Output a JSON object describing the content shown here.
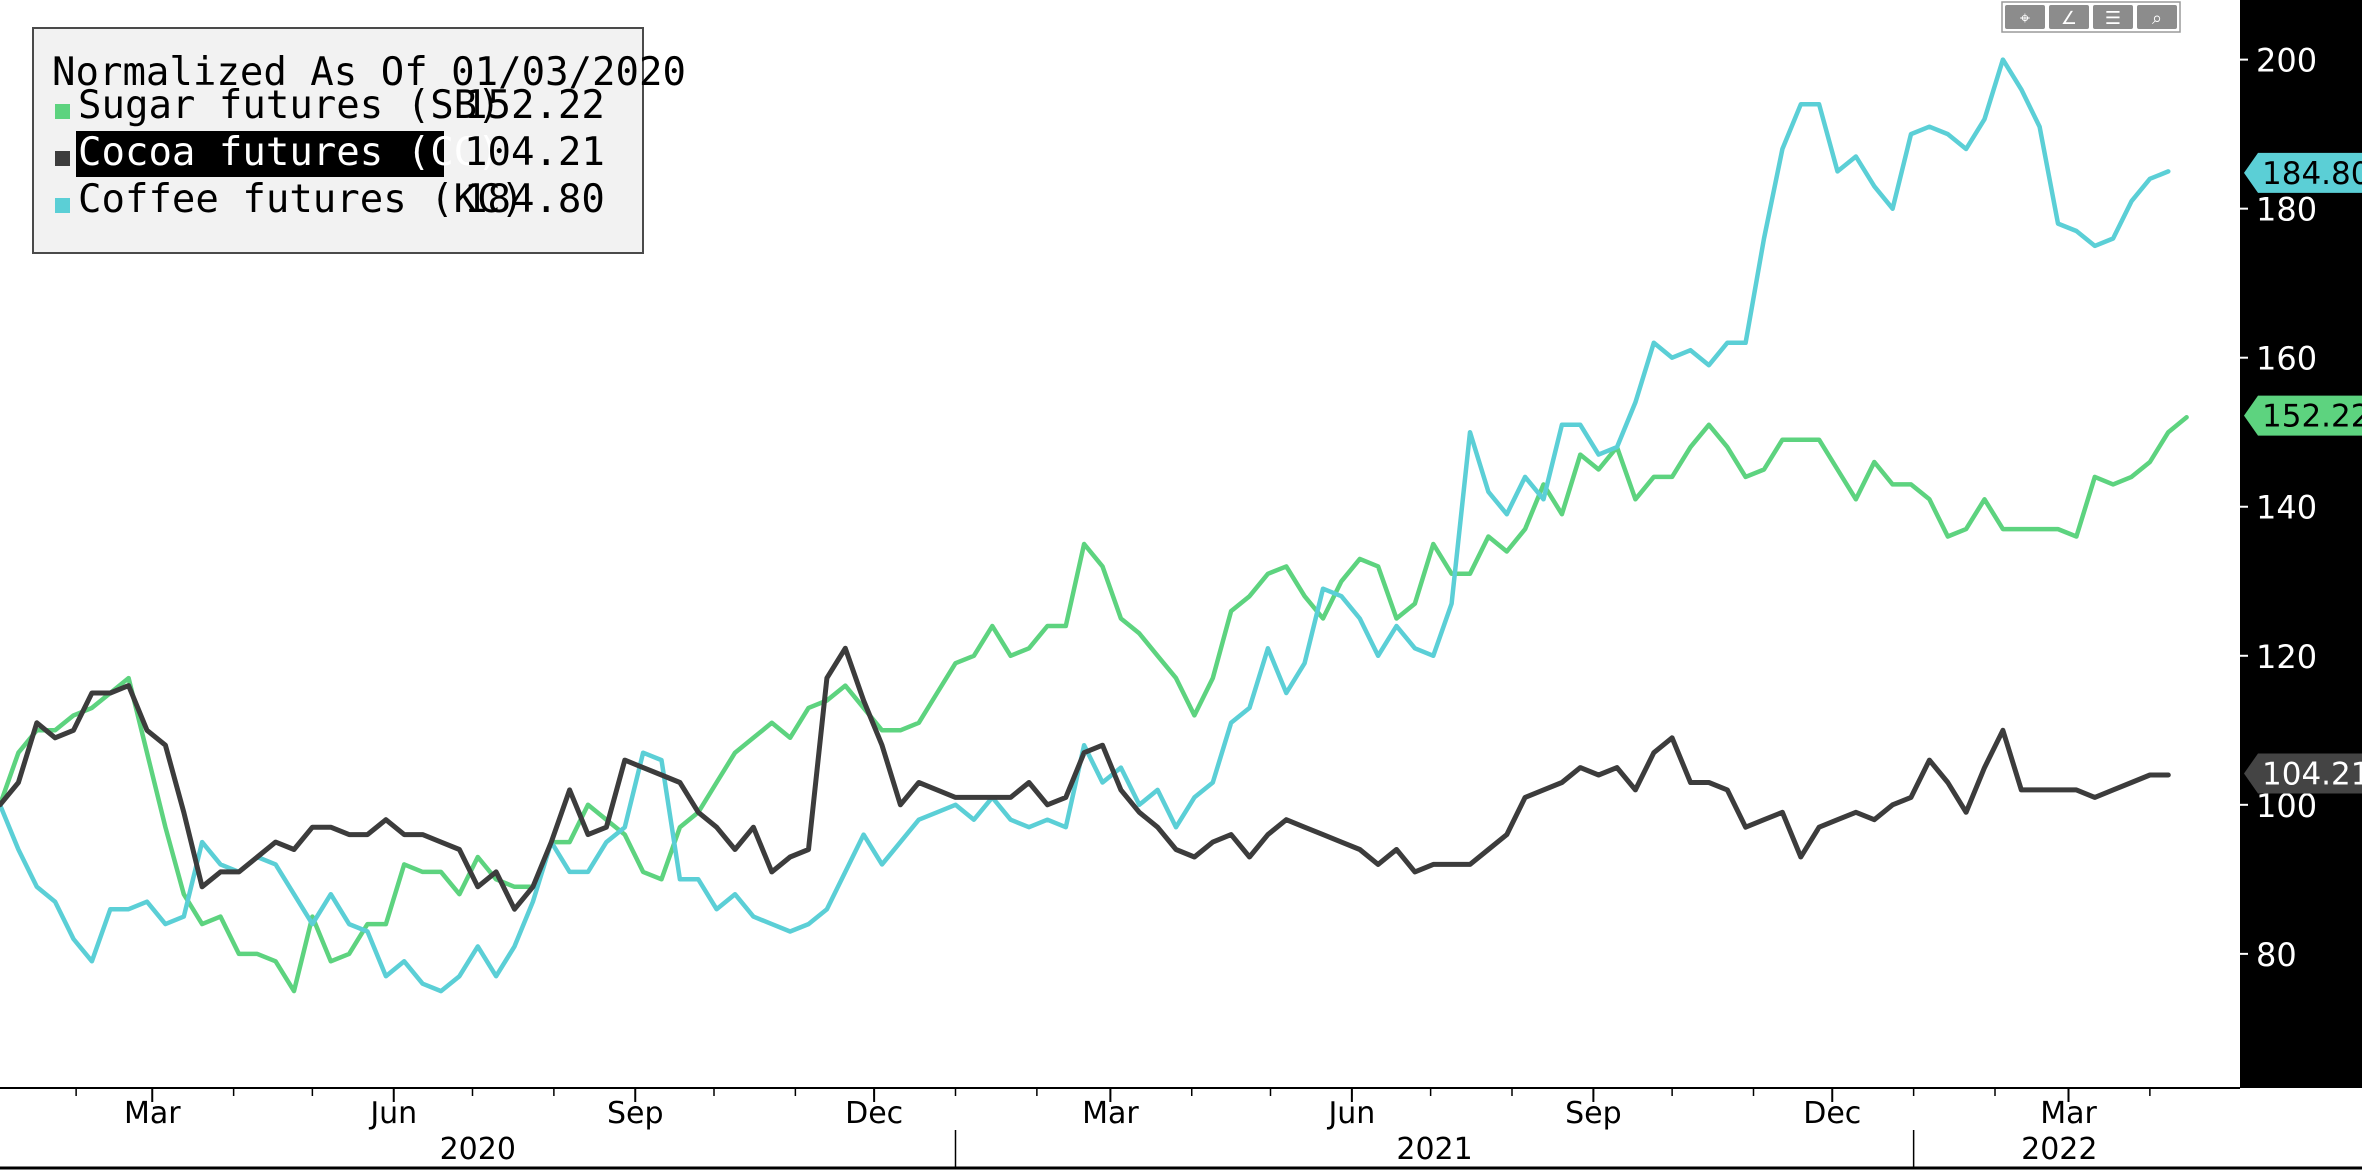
{
  "chart_data": {
    "type": "line",
    "legend": {
      "title": "Normalized As Of 01/03/2020",
      "placement": "top-left"
    },
    "y_axis": {
      "side": "right",
      "ylim": [
        62,
        208
      ],
      "ticks": [
        80,
        100,
        120,
        140,
        160,
        180,
        200
      ],
      "tick_labels": [
        "80",
        "100",
        "120",
        "140",
        "160",
        "180",
        "200"
      ]
    },
    "x_axis": {
      "range": [
        "2020-01-03",
        "2022-04-22"
      ],
      "month_ticks": [
        {
          "date": "2020-03-01",
          "label": "Mar"
        },
        {
          "date": "2020-06-01",
          "label": "Jun"
        },
        {
          "date": "2020-09-01",
          "label": "Sep"
        },
        {
          "date": "2020-12-01",
          "label": "Dec"
        },
        {
          "date": "2021-03-01",
          "label": "Mar"
        },
        {
          "date": "2021-06-01",
          "label": "Jun"
        },
        {
          "date": "2021-09-01",
          "label": "Sep"
        },
        {
          "date": "2021-12-01",
          "label": "Dec"
        },
        {
          "date": "2022-03-01",
          "label": "Mar"
        }
      ],
      "year_labels": [
        {
          "label": "2020",
          "start": "2020-01-03",
          "end": "2021-01-01"
        },
        {
          "label": "2021",
          "start": "2021-01-01",
          "end": "2022-01-01"
        },
        {
          "label": "2022",
          "start": "2022-01-01",
          "end": "2022-04-22"
        }
      ]
    },
    "series": [
      {
        "name": "Sugar futures (SB)",
        "last_value": "152.22",
        "color": "#5dd37f",
        "highlighted": false,
        "x_start": "2020-01-03",
        "step_days": 7,
        "values": [
          100,
          107,
          110,
          110,
          112,
          113,
          115,
          117,
          107,
          97,
          88,
          84,
          85,
          80,
          80,
          79,
          75,
          85,
          79,
          80,
          84,
          84,
          92,
          91,
          91,
          88,
          93,
          90,
          89,
          89,
          95,
          95,
          100,
          98,
          96,
          91,
          90,
          97,
          99,
          103,
          107,
          109,
          111,
          109,
          113,
          114,
          116,
          113,
          110,
          110,
          111,
          115,
          119,
          120,
          124,
          120,
          121,
          124,
          124,
          135,
          132,
          125,
          123,
          120,
          117,
          112,
          117,
          126,
          128,
          131,
          132,
          128,
          125,
          130,
          133,
          132,
          125,
          127,
          135,
          131,
          131,
          136,
          134,
          137,
          143,
          139,
          147,
          145,
          148,
          141,
          144,
          144,
          148,
          151,
          148,
          144,
          145,
          149,
          149,
          149,
          145,
          141,
          146,
          143,
          143,
          141,
          136,
          137,
          141,
          137,
          137,
          137,
          137,
          136,
          144,
          143,
          144,
          146,
          150,
          152
        ]
      },
      {
        "name": "Cocoa futures (CC)",
        "last_value": "104.21",
        "color": "#3c3c3c",
        "highlighted": true,
        "x_start": "2020-01-03",
        "step_days": 7,
        "values": [
          100,
          103,
          111,
          109,
          110,
          115,
          115,
          116,
          110,
          108,
          99,
          89,
          91,
          91,
          93,
          95,
          94,
          97,
          97,
          96,
          96,
          98,
          96,
          96,
          95,
          94,
          89,
          91,
          86,
          89,
          95,
          102,
          96,
          97,
          106,
          105,
          104,
          103,
          99,
          97,
          94,
          97,
          91,
          93,
          94,
          117,
          121,
          114,
          108,
          100,
          103,
          102,
          101,
          101,
          101,
          101,
          103,
          100,
          101,
          107,
          108,
          102,
          99,
          97,
          94,
          93,
          95,
          96,
          93,
          96,
          98,
          97,
          96,
          95,
          94,
          92,
          94,
          91,
          92,
          92,
          92,
          94,
          96,
          101,
          102,
          103,
          105,
          104,
          105,
          102,
          107,
          109,
          103,
          103,
          102,
          97,
          98,
          99,
          93,
          97,
          98,
          99,
          98,
          100,
          101,
          106,
          103,
          99,
          105,
          110,
          102,
          102,
          102,
          102,
          101,
          102,
          103,
          104,
          104
        ]
      },
      {
        "name": "Coffee futures (KC)",
        "last_value": "184.80",
        "color": "#5bcfd6",
        "highlighted": false,
        "x_start": "2020-01-03",
        "step_days": 7,
        "values": [
          100,
          94,
          89,
          87,
          82,
          79,
          86,
          86,
          87,
          84,
          85,
          95,
          92,
          91,
          93,
          92,
          88,
          84,
          88,
          84,
          83,
          77,
          79,
          76,
          75,
          77,
          81,
          77,
          81,
          87,
          95,
          91,
          91,
          95,
          97,
          107,
          106,
          90,
          90,
          86,
          88,
          85,
          84,
          83,
          84,
          86,
          91,
          96,
          92,
          95,
          98,
          99,
          100,
          98,
          101,
          98,
          97,
          98,
          97,
          108,
          103,
          105,
          100,
          102,
          97,
          101,
          103,
          111,
          113,
          121,
          115,
          119,
          129,
          128,
          125,
          120,
          124,
          121,
          120,
          127,
          150,
          142,
          139,
          144,
          141,
          151,
          151,
          147,
          148,
          154,
          162,
          160,
          161,
          159,
          162,
          162,
          176,
          188,
          194,
          194,
          185,
          187,
          183,
          180,
          190,
          191,
          190,
          188,
          192,
          200,
          196,
          191,
          178,
          177,
          175,
          176,
          181,
          184,
          185
        ]
      }
    ]
  },
  "toolbar": {
    "icons": [
      "move-icon",
      "draw-icon",
      "notes-icon",
      "zoom-icon"
    ]
  },
  "colors": {
    "background": "#ffffff",
    "axis_panel": "#000000",
    "axis_text": "#ffffff",
    "legend_bg": "#f2f2f2",
    "legend_border": "#4a4a4a"
  }
}
